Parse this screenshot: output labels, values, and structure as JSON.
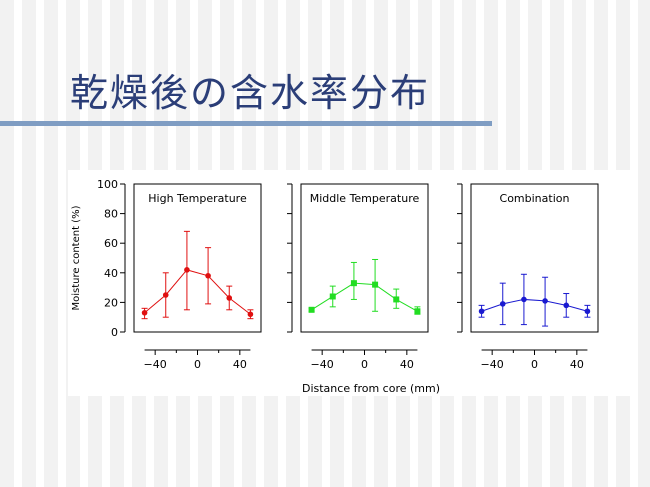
{
  "slide": {
    "title": "乾燥後の含水率分布"
  },
  "chart_data": {
    "type": "line",
    "ylabel": "Moisture content (%)",
    "xlabel": "Distance from core (mm)",
    "ylim": [
      0,
      100
    ],
    "xlim": [
      -60,
      60
    ],
    "yticks": [
      0,
      20,
      40,
      60,
      80,
      100
    ],
    "xticks": [
      -40,
      0,
      40
    ],
    "panels": [
      {
        "name": "High Temperature",
        "color": "#e01010",
        "marker": "circle",
        "x": [
          -50,
          -30,
          -10,
          10,
          30,
          50
        ],
        "y": [
          13,
          25,
          42,
          38,
          23,
          12
        ],
        "err_low": [
          9,
          10,
          15,
          19,
          15,
          9
        ],
        "err_high": [
          16,
          40,
          68,
          57,
          31,
          15
        ],
        "show_yaxis": true
      },
      {
        "name": "Middle Temperature",
        "color": "#22dd22",
        "marker": "square",
        "x": [
          -50,
          -30,
          -10,
          10,
          30,
          50
        ],
        "y": [
          15,
          24,
          33,
          32,
          22,
          14
        ],
        "err_low": [
          14,
          17,
          22,
          14,
          16,
          12
        ],
        "err_high": [
          16,
          31,
          47,
          49,
          29,
          17
        ],
        "show_yaxis": false
      },
      {
        "name": "Combination",
        "color": "#1a1ad0",
        "marker": "circle",
        "x": [
          -50,
          -30,
          -10,
          10,
          30,
          50
        ],
        "y": [
          14,
          19,
          22,
          21,
          18,
          14
        ],
        "err_low": [
          10,
          5,
          5,
          4,
          10,
          10
        ],
        "err_high": [
          18,
          33,
          39,
          37,
          26,
          18
        ],
        "show_yaxis": false
      }
    ]
  }
}
